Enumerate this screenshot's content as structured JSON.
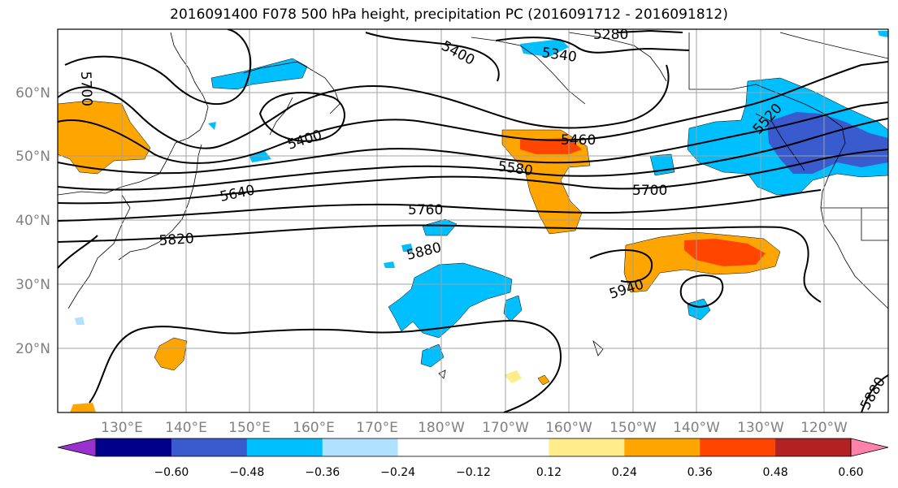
{
  "title": "2016091400 F078 500 hPa height, precipitation PC (2016091712 - 2016091812)",
  "map": {
    "lon_labels": [
      "130°E",
      "140°E",
      "150°E",
      "160°E",
      "170°E",
      "180°W",
      "170°W",
      "160°W",
      "150°W",
      "140°W",
      "130°W",
      "120°W"
    ],
    "lat_labels": [
      "60°N",
      "50°N",
      "40°N",
      "30°N",
      "20°N"
    ],
    "contour_labels": [
      "5280",
      "5340",
      "5400",
      "5400",
      "5460",
      "5520",
      "5580",
      "5640",
      "5700",
      "5700",
      "5760",
      "5820",
      "5880",
      "5880",
      "5940"
    ]
  },
  "colorbar": {
    "colors": [
      "#9932cc",
      "#00008b",
      "#3a5bcd",
      "#00bfff",
      "#b0e2ff",
      "#ffffff",
      "#ffffff",
      "#ffec8b",
      "#ffa500",
      "#ff4500",
      "#b22222",
      "#ff82ab"
    ],
    "tick_labels": [
      "−0.60",
      "−0.48",
      "−0.36",
      "−0.24",
      "−0.12",
      "0.12",
      "0.24",
      "0.36",
      "0.48",
      "0.60"
    ]
  },
  "colors": {
    "pos_weak": "#ffec8b",
    "pos_mod": "#ffa500",
    "pos_strong": "#ff4500",
    "neg_weak": "#b0e2ff",
    "neg_mod": "#00bfff",
    "neg_strong": "#3a5bcd",
    "grid": "#a0a0a0"
  }
}
